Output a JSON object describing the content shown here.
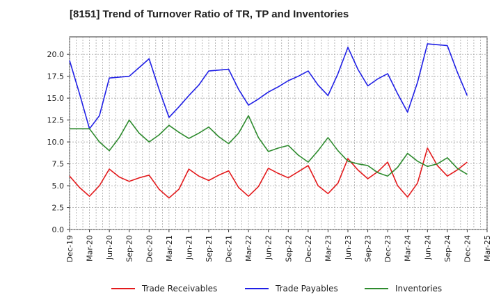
{
  "chart_data": {
    "type": "line",
    "title": "[8151]  Trend of Turnover Ratio of TR, TP and Inventories",
    "xlabel": "",
    "ylabel": "",
    "ylim": [
      0,
      22
    ],
    "yticks": [
      "0.0",
      "2.5",
      "5.0",
      "7.5",
      "10.0",
      "12.5",
      "15.0",
      "17.5",
      "20.0"
    ],
    "xtick_labels": [
      "Dec-19",
      "Mar-20",
      "Jun-20",
      "Sep-20",
      "Dec-20",
      "Mar-21",
      "Jun-21",
      "Sep-21",
      "Dec-21",
      "Mar-22",
      "Jun-22",
      "Sep-22",
      "Dec-22",
      "Mar-23",
      "Jun-23",
      "Sep-23",
      "Dec-23",
      "Mar-24",
      "Jun-24",
      "Sep-24",
      "Dec-24",
      "Mar-25"
    ],
    "grid": true,
    "legend_position": "bottom",
    "series": [
      {
        "name": "Trade Receivables",
        "color": "#e31a1c",
        "values": [
          6.1,
          4.8,
          3.8,
          5.0,
          6.9,
          6.0,
          5.5,
          5.9,
          6.2,
          4.6,
          3.6,
          4.6,
          6.9,
          6.1,
          5.6,
          6.2,
          6.7,
          4.8,
          3.8,
          4.9,
          7.0,
          6.4,
          5.9,
          6.6,
          7.3,
          5.0,
          4.1,
          5.3,
          8.1,
          6.8,
          5.8,
          6.6,
          7.7,
          5.0,
          3.7,
          5.3,
          9.3,
          7.3,
          6.1,
          6.8,
          7.7
        ]
      },
      {
        "name": "Trade Payables",
        "color": "#1f1fe6",
        "values": [
          19.3,
          15.5,
          11.5,
          13.0,
          17.3,
          17.4,
          17.5,
          18.5,
          19.5,
          16.0,
          12.8,
          14.0,
          15.3,
          16.5,
          18.1,
          18.2,
          18.3,
          16.0,
          14.2,
          14.9,
          15.7,
          16.3,
          17.0,
          17.5,
          18.1,
          16.5,
          15.3,
          17.8,
          20.8,
          18.3,
          16.4,
          17.2,
          17.8,
          15.5,
          13.4,
          16.8,
          21.2,
          21.1,
          21.0,
          18.0,
          15.3
        ]
      },
      {
        "name": "Inventories",
        "color": "#2e8b2e",
        "values": [
          11.5,
          11.5,
          11.5,
          10.0,
          9.0,
          10.5,
          12.5,
          11.0,
          10.0,
          10.8,
          11.9,
          11.1,
          10.4,
          11.0,
          11.7,
          10.6,
          9.8,
          11.0,
          13.0,
          10.5,
          8.9,
          9.3,
          9.6,
          8.5,
          7.7,
          9.0,
          10.5,
          9.0,
          7.8,
          7.5,
          7.3,
          6.5,
          6.1,
          7.1,
          8.7,
          7.8,
          7.2,
          7.5,
          8.2,
          7.0,
          6.3
        ]
      }
    ]
  }
}
